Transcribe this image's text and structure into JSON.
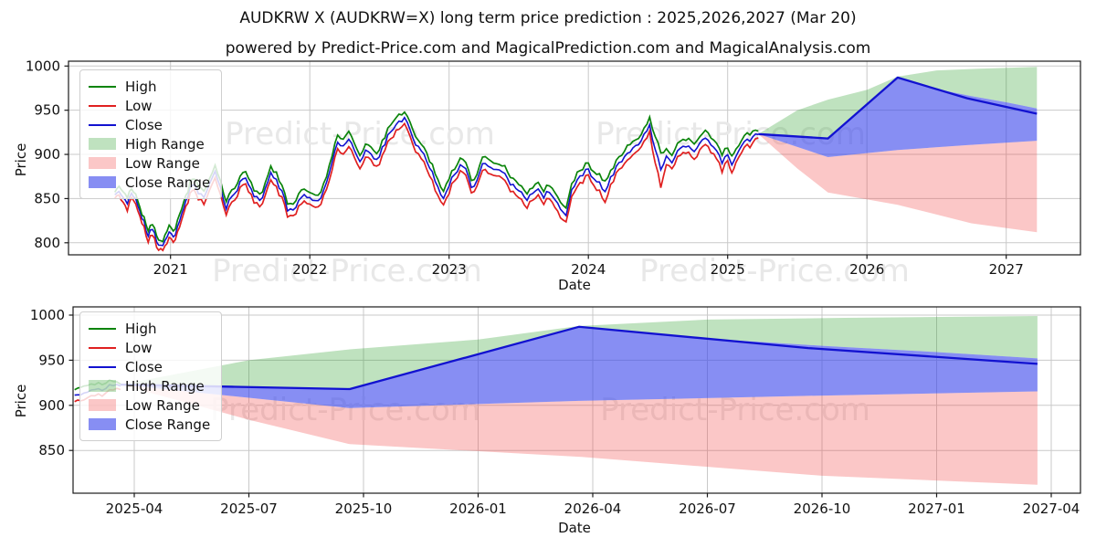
{
  "header": {
    "title": "AUDKRW X (AUDKRW=X) long term price prediction : 2025,2026,2027 (Mar 20)",
    "subtitle": "powered by Predict-Price.com and MagicalPrediction.com and MagicalAnalysis.com"
  },
  "watermark": {
    "text": "Predict-Price.com"
  },
  "legend": {
    "items": [
      {
        "label": "High",
        "type": "line",
        "color_key": "high_line"
      },
      {
        "label": "Low",
        "type": "line",
        "color_key": "low_line"
      },
      {
        "label": "Close",
        "type": "line",
        "color_key": "close_line"
      },
      {
        "label": "High Range",
        "type": "fill",
        "color_key": "high_range_fill"
      },
      {
        "label": "Low Range",
        "type": "fill",
        "color_key": "low_range_fill"
      },
      {
        "label": "Close Range",
        "type": "fill",
        "color_key": "close_range_fill"
      }
    ]
  },
  "colors": {
    "high_line": "#0a840a",
    "low_line": "#e02020",
    "close_line": "#1212d0",
    "high_range_fill": "rgba(44,160,44,0.30)",
    "low_range_fill": "rgba(242,70,70,0.30)",
    "close_range_fill": "rgba(62,72,235,0.62)",
    "grid": "#c9c9c9",
    "spine": "#1a1a1a",
    "tick_text": "#111111",
    "watermark": "#e8e8e8"
  },
  "chart_data": {
    "type": "line",
    "charts": [
      {
        "id": "top",
        "ylabel": "Price",
        "xlabel": "Date",
        "yticks": [
          800,
          850,
          900,
          950,
          1000
        ],
        "xticks": [
          {
            "label": "2021",
            "year": 2021
          },
          {
            "label": "2022",
            "year": 2022
          },
          {
            "label": "2023",
            "year": 2023
          },
          {
            "label": "2024",
            "year": 2024
          },
          {
            "label": "2025",
            "year": 2025
          },
          {
            "label": "2026",
            "year": 2026
          },
          {
            "label": "2027",
            "year": 2027
          }
        ],
        "show_historical": true,
        "hist_from": 2020.6
      },
      {
        "id": "bottom",
        "ylabel": "Price",
        "xlabel": "Date",
        "yticks": [
          850,
          900,
          950,
          1000
        ],
        "xticks": [
          {
            "label": "2025-04",
            "year": 2025.25
          },
          {
            "label": "2025-07",
            "year": 2025.5
          },
          {
            "label": "2025-10",
            "year": 2025.75
          },
          {
            "label": "2026-01",
            "year": 2026.0
          },
          {
            "label": "2026-04",
            "year": 2026.25
          },
          {
            "label": "2026-07",
            "year": 2026.5
          },
          {
            "label": "2026-10",
            "year": 2026.75
          },
          {
            "label": "2027-01",
            "year": 2027.0
          },
          {
            "label": "2027-04",
            "year": 2027.25
          }
        ],
        "show_historical": true,
        "hist_from": 2025.12
      }
    ],
    "historical": {
      "noise_amplitude": 3.2,
      "x": [
        2020.6,
        2020.63,
        2020.66,
        2020.69,
        2020.72,
        2020.75,
        2020.78,
        2020.81,
        2020.84,
        2020.87,
        2020.9,
        2020.93,
        2020.96,
        2020.99,
        2021.02,
        2021.05,
        2021.08,
        2021.11,
        2021.14,
        2021.17,
        2021.2,
        2021.24,
        2021.28,
        2021.32,
        2021.36,
        2021.4,
        2021.44,
        2021.48,
        2021.52,
        2021.56,
        2021.6,
        2021.64,
        2021.68,
        2021.72,
        2021.76,
        2021.8,
        2021.84,
        2021.88,
        2021.92,
        2021.96,
        2022.0,
        2022.04,
        2022.08,
        2022.12,
        2022.16,
        2022.2,
        2022.24,
        2022.28,
        2022.32,
        2022.36,
        2022.4,
        2022.44,
        2022.48,
        2022.52,
        2022.56,
        2022.6,
        2022.64,
        2022.68,
        2022.72,
        2022.76,
        2022.8,
        2022.84,
        2022.88,
        2022.92,
        2022.96,
        2023.0,
        2023.04,
        2023.08,
        2023.12,
        2023.16,
        2023.2,
        2023.24,
        2023.28,
        2023.32,
        2023.36,
        2023.4,
        2023.44,
        2023.48,
        2023.52,
        2023.56,
        2023.6,
        2023.64,
        2023.68,
        2023.72,
        2023.76,
        2023.8,
        2023.84,
        2023.88,
        2023.92,
        2023.96,
        2024.0,
        2024.04,
        2024.08,
        2024.12,
        2024.16,
        2024.2,
        2024.24,
        2024.28,
        2024.32,
        2024.36,
        2024.4,
        2024.44,
        2024.48,
        2024.52,
        2024.56,
        2024.6,
        2024.64,
        2024.68,
        2024.72,
        2024.76,
        2024.8,
        2024.84,
        2024.88,
        2024.92,
        2024.96,
        2025.0,
        2025.03,
        2025.06,
        2025.1,
        2025.14,
        2025.18,
        2025.22
      ],
      "high": [
        856,
        864,
        858,
        851,
        862,
        852,
        840,
        828,
        814,
        821,
        807,
        800,
        806,
        818,
        811,
        823,
        837,
        851,
        867,
        871,
        863,
        857,
        873,
        885,
        869,
        847,
        859,
        865,
        881,
        875,
        861,
        853,
        867,
        885,
        879,
        863,
        846,
        843,
        857,
        863,
        859,
        851,
        859,
        877,
        899,
        921,
        917,
        925,
        911,
        901,
        911,
        908,
        900,
        915,
        927,
        939,
        945,
        949,
        935,
        921,
        911,
        899,
        887,
        869,
        859,
        873,
        885,
        897,
        891,
        869,
        877,
        894,
        897,
        889,
        891,
        885,
        875,
        869,
        863,
        855,
        861,
        867,
        859,
        865,
        858,
        847,
        841,
        865,
        877,
        885,
        889,
        881,
        876,
        869,
        880,
        891,
        900,
        908,
        911,
        918,
        927,
        939,
        921,
        901,
        905,
        898,
        910,
        915,
        918,
        913,
        920,
        927,
        920,
        911,
        898,
        908,
        898,
        906,
        916,
        922,
        924,
        926
      ],
      "low": [
        849,
        856,
        847,
        836,
        853,
        842,
        830,
        818,
        804,
        810,
        797,
        792,
        794,
        806,
        799,
        811,
        825,
        839,
        855,
        859,
        851,
        845,
        861,
        872,
        854,
        833,
        847,
        853,
        868,
        862,
        848,
        840,
        854,
        872,
        864,
        850,
        832,
        830,
        844,
        850,
        846,
        838,
        846,
        863,
        884,
        906,
        902,
        910,
        895,
        886,
        897,
        894,
        886,
        901,
        913,
        925,
        931,
        936,
        920,
        906,
        896,
        883,
        871,
        852,
        845,
        859,
        872,
        884,
        877,
        855,
        864,
        881,
        883,
        875,
        878,
        871,
        861,
        856,
        849,
        841,
        848,
        853,
        845,
        851,
        843,
        830,
        826,
        852,
        864,
        872,
        876,
        867,
        860,
        845,
        866,
        877,
        886,
        894,
        897,
        905,
        913,
        924,
        891,
        863,
        890,
        883,
        895,
        901,
        903,
        897,
        906,
        912,
        905,
        895,
        881,
        894,
        880,
        893,
        903,
        909,
        912,
        920
      ]
    },
    "forecast": {
      "close": {
        "x": [
          2025.22,
          2025.47,
          2025.72,
          2026.22,
          2026.72,
          2027.22
        ],
        "y": [
          923,
          920.5,
          918,
          987,
          963.5,
          946
        ]
      },
      "close_range_top": {
        "x": [
          2025.22,
          2025.72,
          2026.22,
          2026.5,
          2026.75,
          2027.0,
          2027.22
        ],
        "y": [
          923,
          918,
          987,
          974,
          966,
          959,
          952
        ]
      },
      "close_range_bottom": {
        "x": [
          2025.22,
          2025.72,
          2026.22,
          2026.72,
          2027.22
        ],
        "y": [
          923,
          897,
          905,
          910.5,
          915.5
        ]
      },
      "high_range_top": {
        "x": [
          2025.22,
          2025.5,
          2025.72,
          2026.0,
          2026.22,
          2026.5,
          2026.8,
          2027.22
        ],
        "y": [
          923,
          950,
          962,
          973,
          988,
          995,
          997,
          999
        ]
      },
      "low_range_bottom": {
        "x": [
          2025.22,
          2025.5,
          2025.72,
          2026.22,
          2026.75,
          2027.22
        ],
        "y": [
          923,
          884,
          857,
          843,
          822,
          812
        ]
      }
    }
  }
}
